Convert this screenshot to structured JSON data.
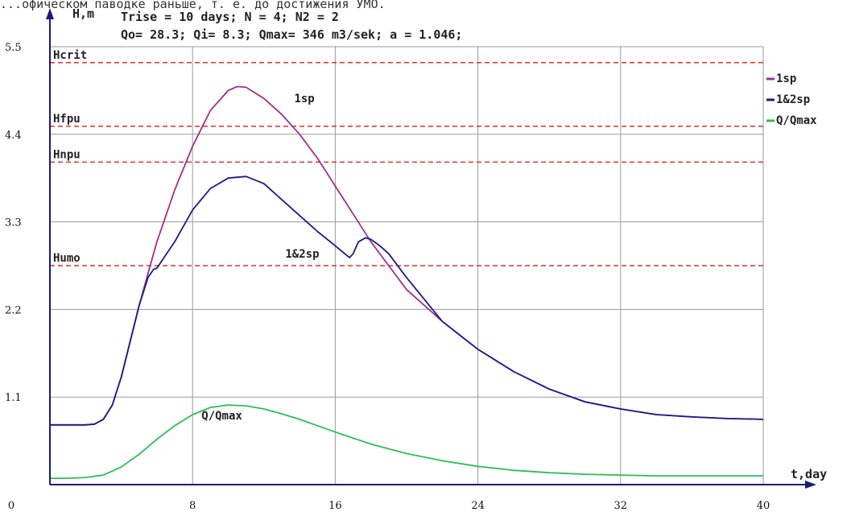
{
  "header": {
    "top_text": "...офическом паводке раньше, т. е. до достижения УМО.",
    "line1": "Trise = 10 days; N = 4; N2 = 2",
    "line2": "Qo= 28.3; Qi= 8.3; Qmax= 346 m3/sek; a = 1.046;"
  },
  "colors": {
    "s1": "#a0308a",
    "s2": "#1c1a8c",
    "s3": "#2bbf55",
    "threshold": "#e0302a",
    "grid": "#9a9a9a",
    "axis": "#1a1a7a"
  },
  "chart_data": {
    "type": "line",
    "ylabel": "H,m",
    "xlabel": "t,day",
    "xlim": [
      0,
      40
    ],
    "ylim": [
      0,
      5.5
    ],
    "x_ticks": [
      0,
      8,
      16,
      24,
      32,
      40
    ],
    "y_ticks": [
      1.1,
      2.2,
      3.3,
      4.4,
      5.5
    ],
    "grid": true,
    "legend_position": "right",
    "thresholds": [
      {
        "label": "Hcrit",
        "y": 5.3
      },
      {
        "label": "Hfpu",
        "y": 4.5
      },
      {
        "label": "Hnpu",
        "y": 4.05
      },
      {
        "label": "Humo",
        "y": 2.75
      }
    ],
    "series": [
      {
        "name": "1sp",
        "label": "1sp",
        "label_at": [
          13.7,
          4.8
        ],
        "x": [
          0,
          1,
          2,
          2.5,
          3,
          3.5,
          4,
          4.5,
          5,
          5.5,
          6,
          7,
          8,
          9,
          10,
          10.5,
          11,
          12,
          13,
          14,
          15,
          16,
          17,
          18,
          19,
          20,
          22,
          24,
          26,
          28,
          30,
          32,
          34,
          36,
          38,
          40
        ],
        "y": [
          0.75,
          0.75,
          0.75,
          0.76,
          0.82,
          1.0,
          1.35,
          1.8,
          2.25,
          2.65,
          3.05,
          3.7,
          4.25,
          4.7,
          4.95,
          5.0,
          4.99,
          4.85,
          4.65,
          4.4,
          4.1,
          3.75,
          3.4,
          3.05,
          2.75,
          2.45,
          2.05,
          1.7,
          1.42,
          1.2,
          1.04,
          0.95,
          0.88,
          0.85,
          0.83,
          0.82
        ]
      },
      {
        "name": "1&2sp",
        "label": "1&2sp",
        "label_at": [
          13.2,
          2.85
        ],
        "x": [
          0,
          1,
          2,
          2.5,
          3,
          3.5,
          4,
          4.5,
          5,
          5.5,
          5.8,
          6,
          7,
          8,
          9,
          10,
          11,
          12,
          13,
          14,
          15,
          16,
          16.8,
          17,
          17.3,
          17.7,
          18,
          18.5,
          19,
          20,
          22,
          24,
          26,
          28,
          30,
          32,
          34,
          36,
          38,
          40
        ],
        "y": [
          0.75,
          0.75,
          0.75,
          0.76,
          0.82,
          1.0,
          1.35,
          1.8,
          2.25,
          2.6,
          2.7,
          2.72,
          3.05,
          3.45,
          3.72,
          3.85,
          3.87,
          3.78,
          3.58,
          3.38,
          3.18,
          3.0,
          2.85,
          2.9,
          3.05,
          3.1,
          3.08,
          3.0,
          2.9,
          2.6,
          2.05,
          1.7,
          1.42,
          1.2,
          1.04,
          0.95,
          0.88,
          0.85,
          0.83,
          0.82
        ]
      },
      {
        "name": "Q/Qmax",
        "label": "Q/Qmax",
        "label_at": [
          8.5,
          0.82
        ],
        "x": [
          0,
          1,
          2,
          3,
          4,
          5,
          6,
          7,
          8,
          9,
          10,
          11,
          12,
          13,
          14,
          16,
          18,
          20,
          22,
          24,
          26,
          28,
          30,
          32,
          34,
          36,
          38,
          40
        ],
        "y": [
          0.08,
          0.08,
          0.09,
          0.12,
          0.22,
          0.38,
          0.57,
          0.74,
          0.88,
          0.97,
          1.0,
          0.99,
          0.95,
          0.89,
          0.82,
          0.66,
          0.51,
          0.39,
          0.3,
          0.23,
          0.18,
          0.15,
          0.13,
          0.12,
          0.11,
          0.11,
          0.11,
          0.11
        ]
      }
    ]
  },
  "legend": {
    "items": [
      {
        "label": "1sp"
      },
      {
        "label": "1&2sp"
      },
      {
        "label": "Q/Qmax"
      }
    ]
  }
}
